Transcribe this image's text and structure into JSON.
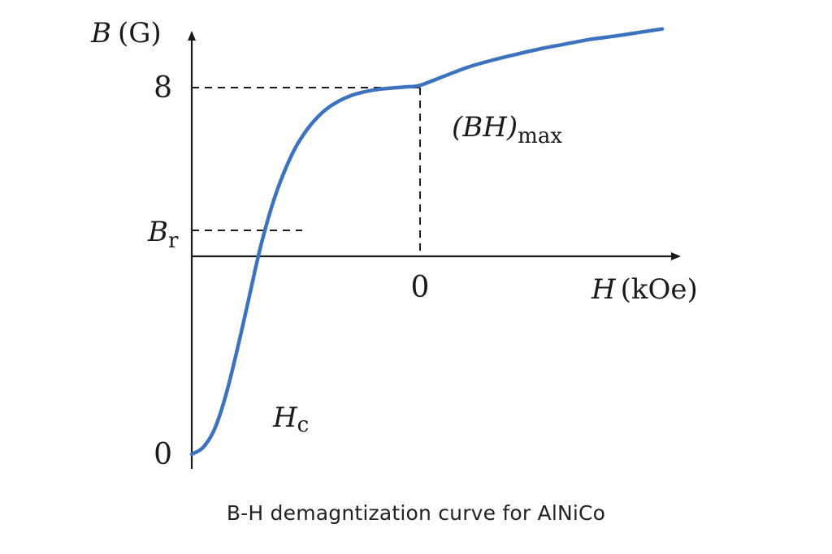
{
  "chart_data": {
    "type": "line",
    "caption": "B-H demagntization curve for AlNiCo",
    "y_axis": {
      "symbol": "B",
      "unit": "(G)"
    },
    "x_axis": {
      "symbol": "H",
      "unit": "(kOe)"
    },
    "y_ticks": [
      {
        "value": 0,
        "label": "0"
      },
      {
        "value": 8,
        "label": "8"
      }
    ],
    "x_ticks": [
      {
        "value": 0,
        "label": "0"
      }
    ],
    "annotations": {
      "remanence": {
        "main": "B",
        "sub": "r"
      },
      "coercivity": {
        "main": "H",
        "sub": "c"
      },
      "bh_max": {
        "main": "(BH)",
        "sub": "max"
      }
    },
    "series": [
      {
        "color": "#3b73be",
        "x": [
          -10.0,
          -9.5,
          -9.0,
          -8.5,
          -8.0,
          -7.5,
          -7.0,
          -6.5,
          -6.0,
          -5.5,
          -5.0,
          -4.5,
          -4.0,
          -3.5,
          -3.0,
          -2.5,
          -2.0,
          -1.5,
          -1.0,
          -0.5,
          0.0,
          1.0,
          2.0,
          3.0,
          4.0,
          5.0,
          6.0,
          7.0,
          8.0,
          9.0,
          10.0
        ],
        "y": [
          0.0,
          0.15,
          0.55,
          1.3,
          2.3,
          3.4,
          4.5,
          5.4,
          6.1,
          6.65,
          7.05,
          7.35,
          7.57,
          7.72,
          7.83,
          7.9,
          7.95,
          7.98,
          8.0,
          8.02,
          8.05,
          8.25,
          8.45,
          8.6,
          8.73,
          8.85,
          8.95,
          9.05,
          9.12,
          9.2,
          9.28
        ]
      }
    ],
    "xlim": [
      -10,
      10.5
    ],
    "ylim": [
      0,
      9.5
    ]
  }
}
